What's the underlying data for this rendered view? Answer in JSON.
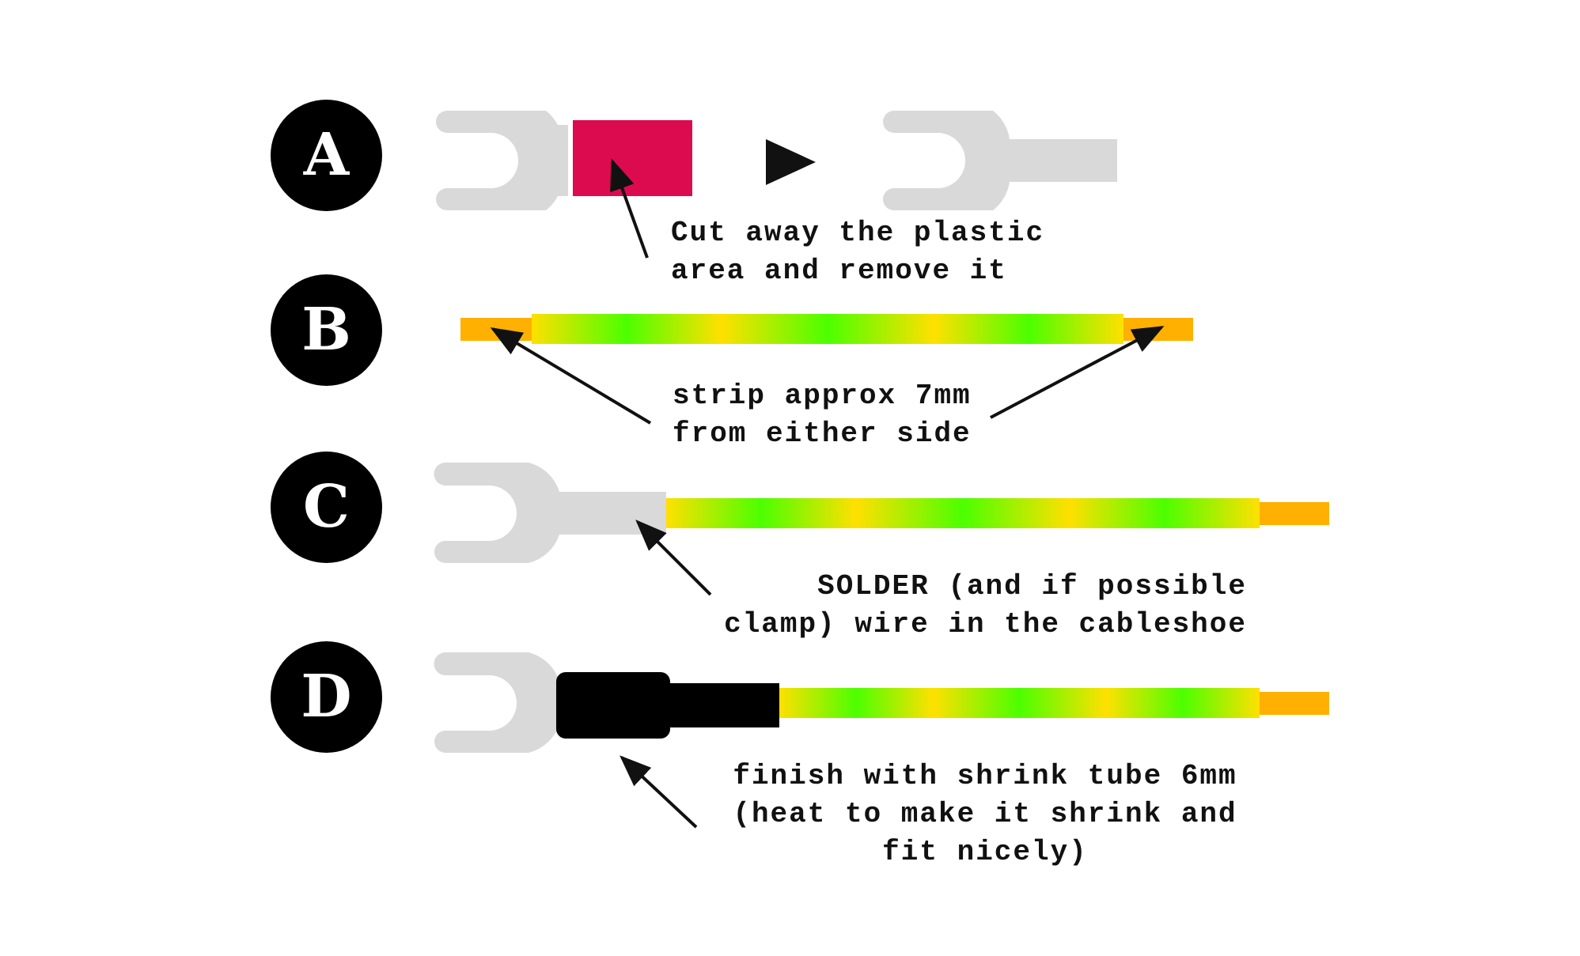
{
  "colors": {
    "lug": "#d9d9d9",
    "plastic_sleeve": "#dc0a4e",
    "stripped_copper": "#ffb000",
    "wire_yellow": "#ffe000",
    "wire_green": "#4cff00",
    "shrink_tube": "#000000",
    "badge": "#000000",
    "badge_letter": "#ffffff",
    "text": "#111111"
  },
  "icons": {
    "step_arrow": "play-triangle-icon",
    "pointer": "arrow-pointer-icon"
  },
  "steps": [
    {
      "letter": "A",
      "caption": [
        "Cut away the plastic",
        "area and remove it"
      ]
    },
    {
      "letter": "B",
      "caption": [
        "strip approx 7mm",
        "from either side"
      ]
    },
    {
      "letter": "C",
      "caption": [
        "SOLDER (and if possible",
        "clamp) wire in the cableshoe"
      ]
    },
    {
      "letter": "D",
      "caption": [
        "finish with shrink tube 6mm",
        "(heat to make it shrink and",
        "fit nicely)"
      ]
    }
  ]
}
